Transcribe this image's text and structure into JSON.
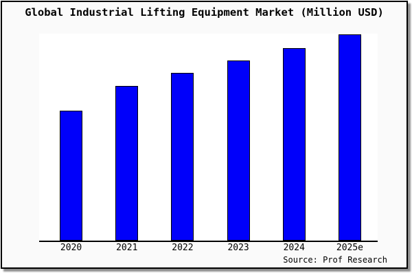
{
  "chart_data": {
    "type": "bar",
    "title": "Global Industrial Lifting Equipment Market (Million USD)",
    "categories": [
      "2020",
      "2021",
      "2022",
      "2023",
      "2024",
      "2025e"
    ],
    "values": [
      63,
      75,
      81.5,
      87.5,
      93.5,
      100
    ],
    "ylim": [
      0,
      100
    ],
    "xlabel": "",
    "ylabel": "",
    "y_axis_visible": false,
    "grid": false,
    "legend": false,
    "bar_color": "#0000fa",
    "bar_border_color": "#000000"
  },
  "footer": {
    "source": "Source: Prof Research"
  },
  "colors": {
    "frame_border": "#000000",
    "figure_background": "#fafafa",
    "plot_background": "#ffffff",
    "axis_line": "#000000",
    "shadow": "#8f8f8f"
  }
}
